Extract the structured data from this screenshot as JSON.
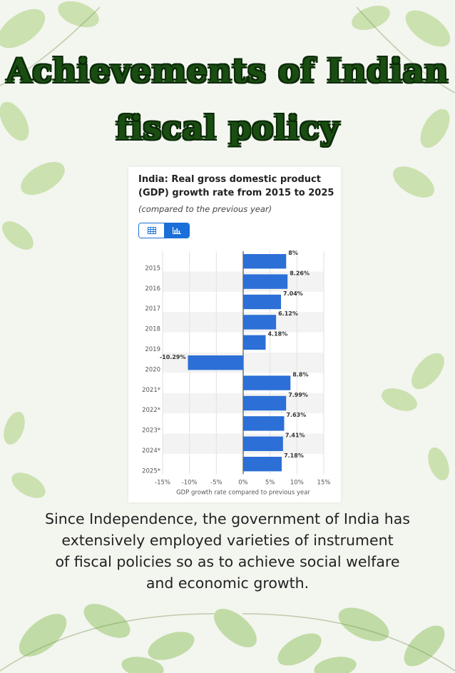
{
  "page": {
    "title_line1": "Achievements of Indian",
    "title_line2": "fiscal policy",
    "body_lines": [
      "Since Independence, the government of India has",
      "extensively employed varieties of instrument",
      "of fiscal policies so as to achieve social welfare",
      "and economic growth."
    ]
  },
  "colors": {
    "bar": "#2c6fd6",
    "title_green": "#1a4d12",
    "toggle_blue": "#1a6fd8"
  },
  "toggle": {
    "left_icon": "table-icon",
    "right_icon": "bar-chart-icon"
  },
  "chart_data": {
    "type": "bar",
    "orientation": "horizontal",
    "title": "India: Real gross domestic product (GDP) growth rate from 2015 to 2025",
    "subtitle": "(compared to the previous year)",
    "categories": [
      "2015",
      "2016",
      "2017",
      "2018",
      "2019",
      "2020",
      "2021*",
      "2022*",
      "2023*",
      "2024*",
      "2025*"
    ],
    "values": [
      8,
      8.26,
      7.04,
      6.12,
      4.18,
      -10.29,
      8.8,
      7.99,
      7.63,
      7.41,
      7.18
    ],
    "value_labels": [
      "8%",
      "8.26%",
      "7.04%",
      "6.12%",
      "4.18%",
      "-10.29%",
      "8.8%",
      "7.99%",
      "7.63%",
      "7.41%",
      "7.18%"
    ],
    "xlabel": "GDP growth rate compared to previous year",
    "xlim": [
      -15,
      15
    ],
    "xticks": [
      -15,
      -10,
      -5,
      0,
      5,
      10,
      15
    ],
    "xtick_labels": [
      "-15%",
      "-10%",
      "-5%",
      "0%",
      "5%",
      "10%",
      "15%"
    ],
    "grid": true,
    "legend": "none"
  }
}
